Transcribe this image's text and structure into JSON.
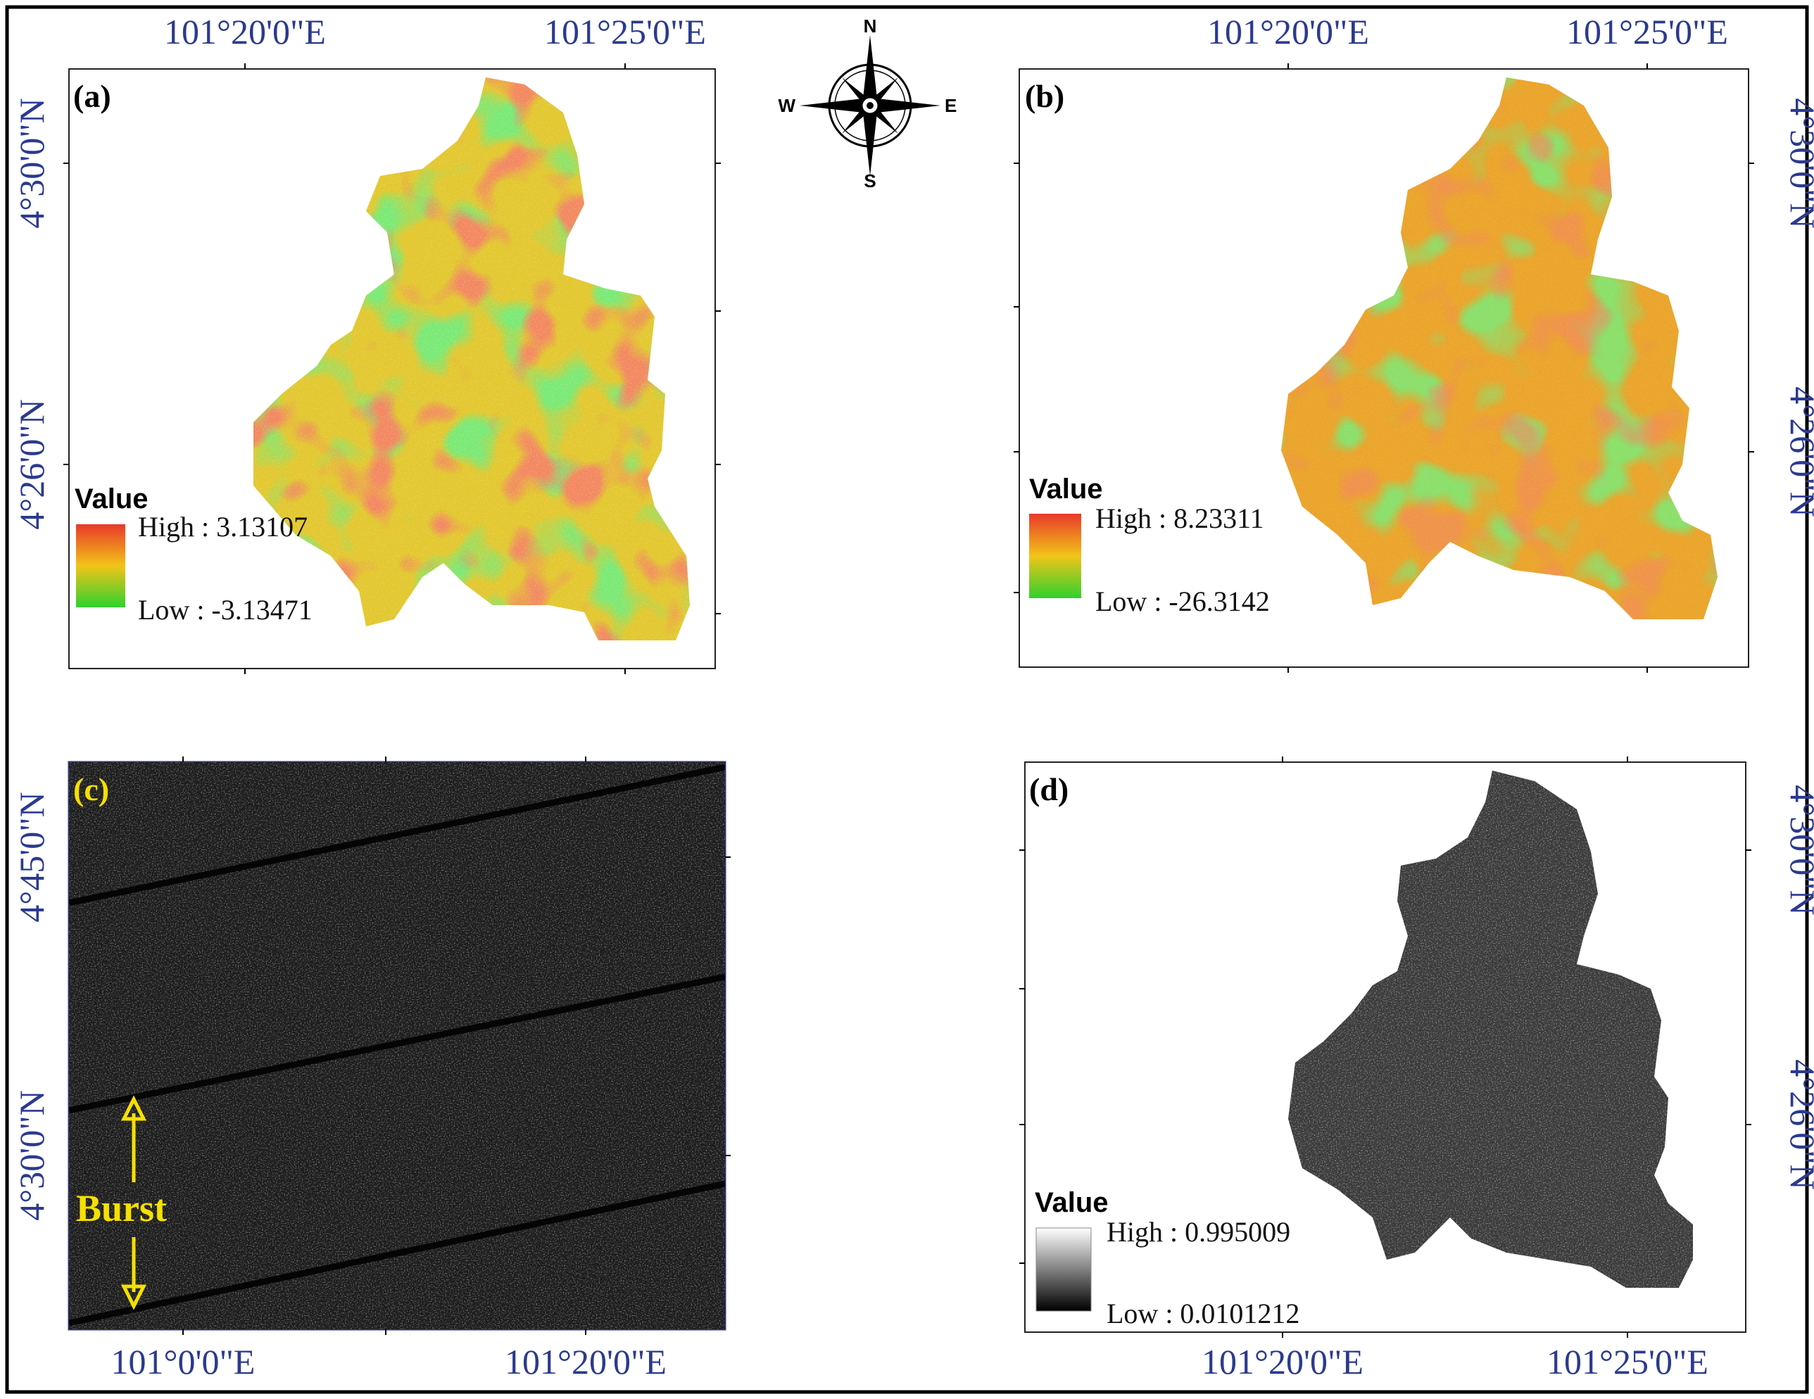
{
  "compass": {
    "n": "N",
    "s": "S",
    "e": "E",
    "w": "W"
  },
  "panels": {
    "a": {
      "label": "(a)",
      "top_lon": [
        "101°20'0\"E",
        "101°25'0\"E"
      ],
      "left_lat": [
        "4°30'0\"N",
        "4°26'0\"N"
      ],
      "legend": {
        "title": "Value",
        "high": "High : 3.13107",
        "low": "Low : -3.13471",
        "colors": [
          "#e8392a",
          "#f2c418",
          "#2fd12e"
        ]
      }
    },
    "b": {
      "label": "(b)",
      "top_lon": [
        "101°20'0\"E",
        "101°25'0\"E"
      ],
      "right_lat": [
        "4°30'0\"N",
        "4°26'0\"N"
      ],
      "legend": {
        "title": "Value",
        "high": "High : 8.23311",
        "low": "Low : -26.3142",
        "colors": [
          "#e8392a",
          "#f2c418",
          "#2fd12e"
        ]
      }
    },
    "c": {
      "label": "(c)",
      "left_lat": [
        "4°45'0\"N",
        "4°30'0\"N"
      ],
      "bottom_lon": [
        "101°0'0\"E",
        "101°20'0\"E"
      ],
      "annotation": "Burst"
    },
    "d": {
      "label": "(d)",
      "right_lat": [
        "4°30'0\"N",
        "4°26'0\"N"
      ],
      "bottom_lon": [
        "101°20'0\"E",
        "101°25'0\"E"
      ],
      "legend": {
        "title": "Value",
        "high": "High : 0.995009",
        "low": "Low : 0.0101212",
        "colors": [
          "#ffffff",
          "#000000"
        ]
      }
    }
  },
  "colors": {
    "coord_text": "#2b3a8f",
    "burst_annotation": "#f5e000"
  }
}
